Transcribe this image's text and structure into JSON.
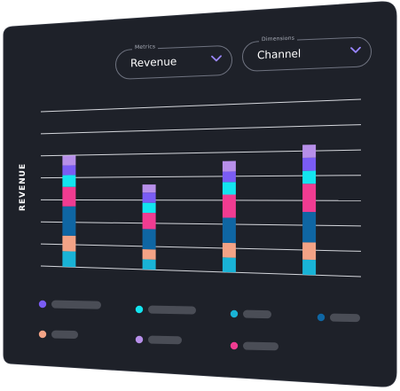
{
  "panel": {
    "background": "#1e2129",
    "border": "#2c303a"
  },
  "controls": {
    "metrics": {
      "label": "Metrics",
      "value": "Revenue",
      "chevron_icon": "chevron-down-icon",
      "accent": "#9a86ff"
    },
    "dimensions": {
      "label": "Dimensions",
      "value": "Channel",
      "chevron_icon": "chevron-down-icon",
      "accent": "#9a86ff"
    }
  },
  "chart_data": {
    "type": "bar",
    "stacked": true,
    "ylabel": "REVENUE",
    "categories": [
      "",
      "",
      "",
      ""
    ],
    "ylim": [
      0,
      8
    ],
    "grid": true,
    "legend": "bottom",
    "series": [
      {
        "color": "#19b3d6",
        "values": [
          0.8,
          0.5,
          0.7,
          0.7
        ]
      },
      {
        "color": "#f3a386",
        "values": [
          0.8,
          0.5,
          0.7,
          0.8
        ]
      },
      {
        "color": "#0f66a3",
        "values": [
          1.5,
          1.0,
          1.2,
          1.4
        ]
      },
      {
        "color": "#f03c91",
        "values": [
          1.0,
          0.8,
          1.1,
          1.3
        ]
      },
      {
        "color": "#13e4ef",
        "values": [
          0.6,
          0.5,
          0.6,
          0.6
        ]
      },
      {
        "color": "#7a5cf4",
        "values": [
          0.5,
          0.5,
          0.5,
          0.6
        ]
      },
      {
        "color": "#b78fe9",
        "values": [
          0.5,
          0.4,
          0.5,
          0.6
        ]
      }
    ],
    "legend_entries": [
      {
        "color": "#7a5cf4"
      },
      {
        "color": "#13e4ef"
      },
      {
        "color": "#19b3d6"
      },
      {
        "color": "#0f66a3"
      },
      {
        "color": "#f3a386"
      },
      {
        "color": "#b78fe9"
      },
      {
        "color": "#f03c91"
      }
    ]
  }
}
